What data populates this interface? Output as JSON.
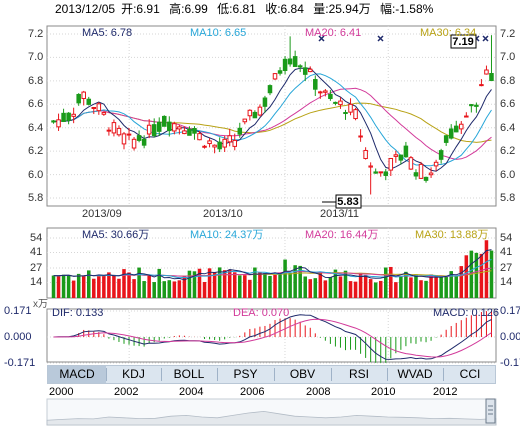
{
  "header": {
    "date": "2013/12/05",
    "open": "开:6.91",
    "high": "高:6.99",
    "low": "低:6.81",
    "close": "收:6.84",
    "volume": "量:25.94万",
    "change": "幅:-1.58%"
  },
  "price_panel": {
    "legend": {
      "ma5": "MA5: 6.78",
      "ma10": "MA10: 6.65",
      "ma20": "MA20: 6.41",
      "ma30": "MA30: 6.34"
    },
    "y_ticks": [
      "7.2",
      "7.0",
      "6.8",
      "6.6",
      "6.4",
      "6.2",
      "6.0",
      "5.8"
    ],
    "x_labels": [
      "2013/09",
      "2013/10",
      "2013/11"
    ],
    "high_label": "7.19",
    "low_label": "5.83"
  },
  "volume_panel": {
    "legend": {
      "ma5": "MA5: 30.66万",
      "ma10": "MA10: 24.37万",
      "ma20": "MA20: 16.44万",
      "ma30": "MA30: 13.88万"
    },
    "y_ticks": [
      "54",
      "41",
      "27",
      "14"
    ],
    "unit": "x万"
  },
  "macd_panel": {
    "legend": {
      "dif": "DIF: 0.133",
      "dea": "DEA: 0.070",
      "macd": "MACD: 0.126"
    },
    "y_ticks": [
      "0.171",
      "0.000",
      "-0.171"
    ]
  },
  "tabs": [
    "MACD",
    "KDJ",
    "BOLL",
    "PSY",
    "OBV",
    "RSI",
    "WVAD",
    "CCI"
  ],
  "active_tab": "MACD",
  "timeline_years": [
    "2000",
    "2002",
    "2004",
    "2006",
    "2008",
    "2010",
    "2012"
  ],
  "colors": {
    "up": "#e8141a",
    "down": "#1a9a1a",
    "ma5": "#1f2a6b",
    "ma10": "#27a6d8",
    "ma20": "#d23a9a",
    "ma30": "#b8a215",
    "grid": "#d6d6d6",
    "axis": "#777777",
    "tab_bg": "#dbe5ef",
    "tab_active": "#b9c9da"
  }
}
